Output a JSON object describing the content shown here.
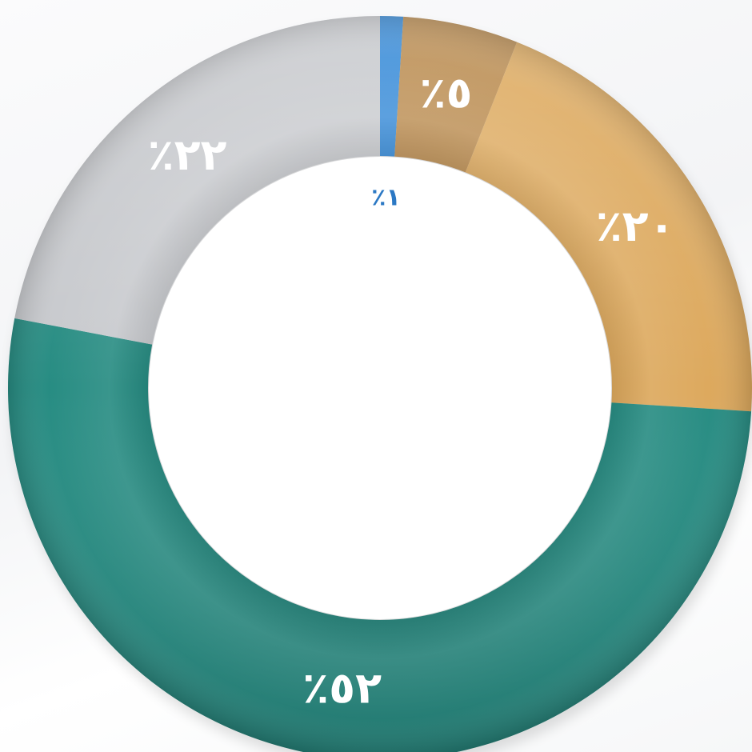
{
  "chart_data": {
    "type": "pie",
    "variant": "donut",
    "slices": [
      {
        "value": 1,
        "label": "٪١",
        "color": "#2f86d6",
        "label_color": "#2b78c4"
      },
      {
        "value": 5,
        "label": "٪٥",
        "color": "#b8884a",
        "label_color": "#ffffff"
      },
      {
        "value": 20,
        "label": "٪٢٠",
        "color": "#dca75a",
        "label_color": "#ffffff"
      },
      {
        "value": 52,
        "label": "٪٥٢",
        "color": "#238a80",
        "label_color": "#ffffff"
      },
      {
        "value": 22,
        "label": "٪٢٢",
        "color": "#c6c8cc",
        "label_color": "#ffffff"
      }
    ]
  }
}
